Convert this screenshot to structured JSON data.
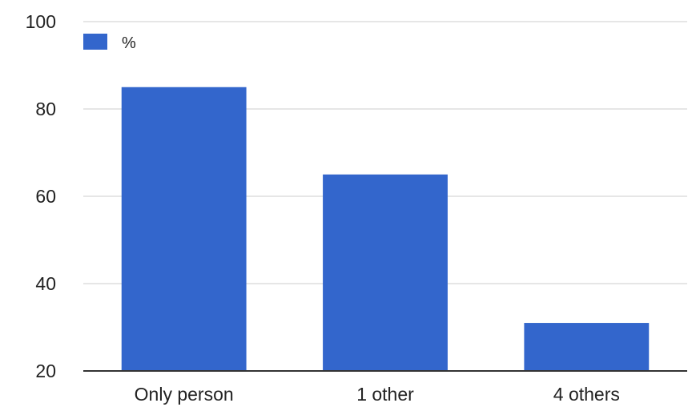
{
  "chart_data": {
    "type": "bar",
    "title": "",
    "xlabel": "",
    "ylabel": "",
    "categories": [
      "Only person",
      "1 other",
      "4 others"
    ],
    "series": [
      {
        "name": "%",
        "values": [
          85,
          65,
          31
        ],
        "color": "#3366cc"
      }
    ],
    "ylim": [
      20,
      100
    ],
    "yticks": [
      20,
      40,
      60,
      80,
      100
    ],
    "grid": true,
    "legend": {
      "position": "top-left",
      "entries": [
        "%"
      ]
    }
  }
}
